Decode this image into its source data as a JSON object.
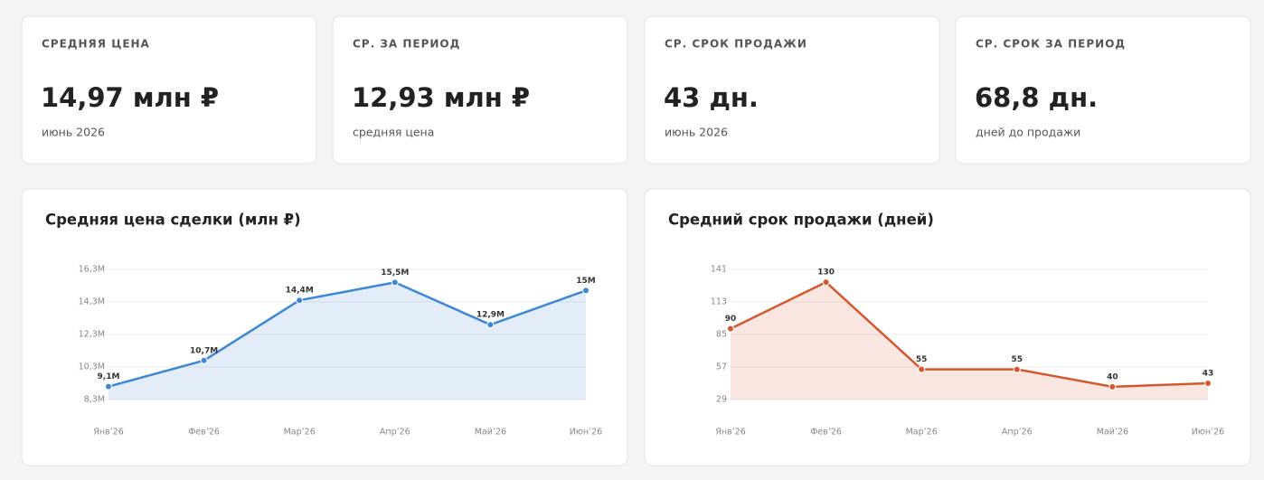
{
  "cards": [
    {
      "label": "СРЕДНЯЯ ЦЕНА",
      "value": "14,97 млн ₽",
      "note": "июнь 2026"
    },
    {
      "label": "СР. ЗА ПЕРИОД",
      "value": "12,93 млн ₽",
      "note": "средняя цена"
    },
    {
      "label": "СР. СРОК ПРОДАЖИ",
      "value": "43 дн.",
      "note": "июнь 2026"
    },
    {
      "label": "СР. СРОК ЗА ПЕРИОД",
      "value": "68,8 дн.",
      "note": "дней до продажи"
    }
  ],
  "chart_data": [
    {
      "type": "line",
      "title": "Средняя цена сделки (млн ₽)",
      "categories": [
        "Янв’26",
        "Фев’26",
        "Мар’26",
        "Апр’26",
        "Май’26",
        "Июн’26"
      ],
      "values": [
        9.1,
        10.7,
        14.4,
        15.5,
        12.9,
        15
      ],
      "value_labels": [
        "9,1M",
        "10,7M",
        "14,4M",
        "15,5M",
        "12,9M",
        "15M"
      ],
      "color": "#3d87d4",
      "area": true,
      "grid": true,
      "ylim": [
        8.3,
        16.3
      ],
      "yticks": [
        {
          "value": 8.3,
          "label": "8,3M"
        },
        {
          "value": 10.3,
          "label": "10,3M"
        },
        {
          "value": 12.3,
          "label": "12,3M"
        },
        {
          "value": 14.3,
          "label": "14,3M"
        },
        {
          "value": 16.3,
          "label": "16,3M"
        }
      ]
    },
    {
      "type": "line",
      "title": "Средний срок продажи (дней)",
      "categories": [
        "Янв’26",
        "Фев’26",
        "Мар’26",
        "Апр’26",
        "Май’26",
        "Июн’26"
      ],
      "values": [
        90,
        130,
        55,
        55,
        40,
        43
      ],
      "color": "#d4582f",
      "area": true,
      "grid": true,
      "ylim": [
        29,
        141
      ],
      "yticks": [
        29,
        57,
        85,
        113,
        141
      ]
    }
  ]
}
